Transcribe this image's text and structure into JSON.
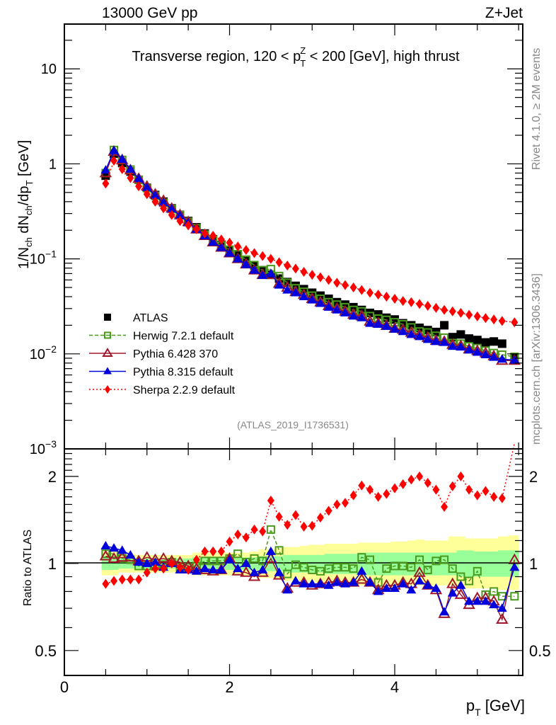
{
  "header": {
    "left": "13000 GeV pp",
    "right": "Z+Jet"
  },
  "side_labels": {
    "rivet": "Rivet 4.1.0, ≥ 2M events",
    "mcplots": "mcplots.cern.ch [arXiv:1306.3436]"
  },
  "chart_data": [
    {
      "type": "scatter",
      "panel": "main",
      "title": "Transverse region, 120 < p_T^Z < 200 [GeV], high thrust",
      "title_parts": {
        "pre": "Transverse region, 120 < p",
        "sup": "Z",
        "sub": "T",
        "post": " < 200 [GeV], high thrust"
      },
      "ylabel": "1/N_ch dN_ch/dp_T [GeV]",
      "ylabel_parts": {
        "a": "1/N",
        "a_sub": "ch",
        "b": " dN",
        "b_sub": "ch",
        "c": "/dp",
        "c_sub": "T",
        "d": " [GeV]"
      },
      "xlabel": "",
      "yscale": "log",
      "xlim": [
        0,
        5.55
      ],
      "ylim": [
        0.001,
        29.6
      ],
      "x_ticks": [
        0,
        2,
        4
      ],
      "y_ticks": [
        {
          "value": 10,
          "label": "10",
          "exp": ""
        },
        {
          "value": 1,
          "label": "1",
          "exp": ""
        },
        {
          "value": 0.1,
          "label": "10",
          "exp": "−1"
        },
        {
          "value": 0.01,
          "label": "10",
          "exp": "−2"
        },
        {
          "value": 0.001,
          "label": "10",
          "exp": "−3"
        }
      ],
      "annotation": "(ATLAS_2019_I1736531)",
      "legend_position": "lower-left",
      "x": [
        0.5,
        0.6,
        0.7,
        0.8,
        0.9,
        1.0,
        1.1,
        1.2,
        1.3,
        1.4,
        1.5,
        1.6,
        1.7,
        1.8,
        1.9,
        2.0,
        2.1,
        2.2,
        2.3,
        2.4,
        2.5,
        2.6,
        2.7,
        2.8,
        2.9,
        3.0,
        3.1,
        3.2,
        3.3,
        3.4,
        3.5,
        3.6,
        3.7,
        3.8,
        3.9,
        4.0,
        4.1,
        4.2,
        4.3,
        4.4,
        4.5,
        4.6,
        4.7,
        4.8,
        4.9,
        5.0,
        5.1,
        5.2,
        5.3,
        5.45
      ],
      "series": [
        {
          "name": "ATLAS",
          "color": "#000000",
          "marker": "square-filled",
          "line": "none",
          "values": [
            0.75,
            1.28,
            1.02,
            0.83,
            0.68,
            0.56,
            0.47,
            0.4,
            0.34,
            0.29,
            0.25,
            0.215,
            0.185,
            0.16,
            0.14,
            0.122,
            0.108,
            0.095,
            0.085,
            0.076,
            0.068,
            0.062,
            0.057,
            0.052,
            0.048,
            0.044,
            0.041,
            0.038,
            0.035,
            0.033,
            0.031,
            0.029,
            0.027,
            0.026,
            0.024,
            0.023,
            0.021,
            0.02,
            0.0188,
            0.0178,
            0.017,
            0.02,
            0.015,
            0.016,
            0.0145,
            0.014,
            0.0132,
            0.0135,
            0.0128,
            0.009
          ]
        },
        {
          "name": "Herwig 7.2.1 default",
          "color": "#4a9a1c",
          "marker": "square-open",
          "line": "dashed",
          "values": [
            0.8,
            1.4,
            1.1,
            0.87,
            0.68,
            0.555,
            0.46,
            0.39,
            0.335,
            0.288,
            0.245,
            0.21,
            0.18,
            0.158,
            0.138,
            0.125,
            0.112,
            0.098,
            0.086,
            0.076,
            0.078,
            0.066,
            0.056,
            0.049,
            0.045,
            0.041,
            0.038,
            0.035,
            0.033,
            0.031,
            0.029,
            0.028,
            0.025,
            0.0235,
            0.0228,
            0.0215,
            0.0205,
            0.019,
            0.0172,
            0.0168,
            0.0155,
            0.0148,
            0.013,
            0.0128,
            0.012,
            0.0115,
            0.0108,
            0.0102,
            0.0098,
            0.0093
          ]
        },
        {
          "name": "Pythia 6.428 370",
          "color": "#a0182a",
          "marker": "triangle-open",
          "line": "solid",
          "values": [
            0.8,
            1.35,
            1.1,
            0.86,
            0.7,
            0.58,
            0.48,
            0.41,
            0.34,
            0.29,
            0.245,
            0.205,
            0.175,
            0.15,
            0.132,
            0.115,
            0.1,
            0.088,
            0.076,
            0.068,
            0.068,
            0.055,
            0.05,
            0.045,
            0.042,
            0.038,
            0.035,
            0.032,
            0.03,
            0.028,
            0.026,
            0.025,
            0.022,
            0.021,
            0.0198,
            0.0185,
            0.018,
            0.0168,
            0.0158,
            0.0148,
            0.0138,
            0.0135,
            0.0125,
            0.0122,
            0.0112,
            0.0108,
            0.0102,
            0.0095,
            0.0085,
            0.0085
          ]
        },
        {
          "name": "Pythia 8.315 default",
          "color": "#0000dd",
          "marker": "triangle-filled",
          "line": "solid",
          "values": [
            0.86,
            1.38,
            1.12,
            0.88,
            0.7,
            0.565,
            0.465,
            0.39,
            0.335,
            0.285,
            0.24,
            0.205,
            0.175,
            0.15,
            0.132,
            0.115,
            0.1,
            0.087,
            0.076,
            0.067,
            0.07,
            0.053,
            0.047,
            0.044,
            0.04,
            0.037,
            0.034,
            0.031,
            0.029,
            0.027,
            0.025,
            0.024,
            0.021,
            0.0205,
            0.0195,
            0.0182,
            0.0172,
            0.016,
            0.0152,
            0.0142,
            0.0135,
            0.0132,
            0.012,
            0.0118,
            0.011,
            0.0104,
            0.0098,
            0.0092,
            0.0088,
            0.0086
          ]
        },
        {
          "name": "Sherpa 2.2.9 default",
          "color": "#ff0000",
          "marker": "diamond-filled",
          "line": "dotted",
          "values": [
            0.62,
            1.08,
            0.88,
            0.71,
            0.58,
            0.48,
            0.4,
            0.34,
            0.29,
            0.25,
            0.225,
            0.205,
            0.185,
            0.175,
            0.16,
            0.148,
            0.135,
            0.124,
            0.115,
            0.107,
            0.1,
            0.092,
            0.085,
            0.079,
            0.073,
            0.068,
            0.064,
            0.06,
            0.056,
            0.053,
            0.05,
            0.047,
            0.044,
            0.042,
            0.04,
            0.038,
            0.036,
            0.035,
            0.0335,
            0.032,
            0.0305,
            0.029,
            0.028,
            0.027,
            0.0258,
            0.0248,
            0.0238,
            0.023,
            0.0222,
            0.0215
          ]
        }
      ]
    },
    {
      "type": "scatter",
      "panel": "ratio",
      "ylabel": "Ratio to ATLAS",
      "xlabel": "p_T [GeV]",
      "xlabel_parts": {
        "a": "p",
        "a_sub": "T",
        "b": " [GeV]"
      },
      "yscale": "log",
      "xlim": [
        0,
        5.55
      ],
      "ylim": [
        0.41,
        2.49
      ],
      "x_ticks": [
        {
          "value": 0,
          "label": "0"
        },
        {
          "value": 2,
          "label": "2"
        },
        {
          "value": 4,
          "label": "4"
        }
      ],
      "y_ticks": [
        {
          "value": 2,
          "label": "2"
        },
        {
          "value": 1,
          "label": "1"
        },
        {
          "value": 0.5,
          "label": "0.5"
        }
      ],
      "reference_line": 1,
      "bands": {
        "inner_color": "#99ff99",
        "outer_color": "#ffff99",
        "inner": [
          [
            0.95,
            1.06
          ],
          [
            0.95,
            1.06
          ],
          [
            0.96,
            1.05
          ],
          [
            0.96,
            1.05
          ],
          [
            0.96,
            1.04
          ],
          [
            0.96,
            1.04
          ],
          [
            0.96,
            1.04
          ],
          [
            0.96,
            1.04
          ],
          [
            0.96,
            1.04
          ],
          [
            0.96,
            1.04
          ],
          [
            0.96,
            1.04
          ],
          [
            0.95,
            1.05
          ],
          [
            0.95,
            1.05
          ],
          [
            0.95,
            1.05
          ],
          [
            0.95,
            1.05
          ],
          [
            0.95,
            1.05
          ],
          [
            0.95,
            1.05
          ],
          [
            0.95,
            1.05
          ],
          [
            0.95,
            1.05
          ],
          [
            0.94,
            1.06
          ],
          [
            0.94,
            1.06
          ],
          [
            0.94,
            1.06
          ],
          [
            0.93,
            1.07
          ],
          [
            0.93,
            1.07
          ],
          [
            0.93,
            1.07
          ],
          [
            0.93,
            1.07
          ],
          [
            0.93,
            1.07
          ],
          [
            0.92,
            1.08
          ],
          [
            0.92,
            1.08
          ],
          [
            0.92,
            1.08
          ],
          [
            0.92,
            1.08
          ],
          [
            0.91,
            1.09
          ],
          [
            0.91,
            1.09
          ],
          [
            0.91,
            1.09
          ],
          [
            0.91,
            1.09
          ],
          [
            0.91,
            1.09
          ],
          [
            0.91,
            1.09
          ],
          [
            0.91,
            1.09
          ],
          [
            0.91,
            1.09
          ],
          [
            0.91,
            1.09
          ],
          [
            0.91,
            1.09
          ],
          [
            0.91,
            1.09
          ],
          [
            0.91,
            1.09
          ],
          [
            0.9,
            1.11
          ],
          [
            0.9,
            1.11
          ],
          [
            0.9,
            1.1
          ],
          [
            0.9,
            1.1
          ],
          [
            0.9,
            1.1
          ],
          [
            0.9,
            1.11
          ],
          [
            0.9,
            1.11
          ]
        ],
        "outer": [
          [
            0.91,
            1.1
          ],
          [
            0.91,
            1.1
          ],
          [
            0.93,
            1.08
          ],
          [
            0.93,
            1.08
          ],
          [
            0.93,
            1.07
          ],
          [
            0.93,
            1.07
          ],
          [
            0.93,
            1.07
          ],
          [
            0.93,
            1.07
          ],
          [
            0.93,
            1.07
          ],
          [
            0.93,
            1.07
          ],
          [
            0.93,
            1.07
          ],
          [
            0.91,
            1.09
          ],
          [
            0.91,
            1.09
          ],
          [
            0.91,
            1.09
          ],
          [
            0.91,
            1.09
          ],
          [
            0.91,
            1.09
          ],
          [
            0.91,
            1.09
          ],
          [
            0.91,
            1.09
          ],
          [
            0.9,
            1.1
          ],
          [
            0.89,
            1.12
          ],
          [
            0.89,
            1.12
          ],
          [
            0.88,
            1.13
          ],
          [
            0.87,
            1.14
          ],
          [
            0.87,
            1.14
          ],
          [
            0.87,
            1.15
          ],
          [
            0.86,
            1.16
          ],
          [
            0.86,
            1.16
          ],
          [
            0.85,
            1.17
          ],
          [
            0.85,
            1.17
          ],
          [
            0.85,
            1.17
          ],
          [
            0.85,
            1.17
          ],
          [
            0.84,
            1.18
          ],
          [
            0.84,
            1.18
          ],
          [
            0.84,
            1.18
          ],
          [
            0.84,
            1.18
          ],
          [
            0.84,
            1.19
          ],
          [
            0.84,
            1.19
          ],
          [
            0.84,
            1.2
          ],
          [
            0.84,
            1.21
          ],
          [
            0.84,
            1.2
          ],
          [
            0.84,
            1.2
          ],
          [
            0.84,
            1.2
          ],
          [
            0.84,
            1.24
          ],
          [
            0.82,
            1.24
          ],
          [
            0.82,
            1.22
          ],
          [
            0.82,
            1.22
          ],
          [
            0.82,
            1.22
          ],
          [
            0.82,
            1.22
          ],
          [
            0.81,
            1.24
          ],
          [
            0.81,
            1.25
          ]
        ]
      },
      "x": [
        0.5,
        0.6,
        0.7,
        0.8,
        0.9,
        1.0,
        1.1,
        1.2,
        1.3,
        1.4,
        1.5,
        1.6,
        1.7,
        1.8,
        1.9,
        2.0,
        2.1,
        2.2,
        2.3,
        2.4,
        2.5,
        2.6,
        2.7,
        2.8,
        2.9,
        3.0,
        3.1,
        3.2,
        3.3,
        3.4,
        3.5,
        3.6,
        3.7,
        3.8,
        3.9,
        4.0,
        4.1,
        4.2,
        4.3,
        4.4,
        4.5,
        4.6,
        4.7,
        4.8,
        4.9,
        5.0,
        5.1,
        5.2,
        5.3,
        5.45
      ],
      "series": [
        {
          "name": "Herwig 7.2.1 default",
          "color": "#4a9a1c",
          "marker": "square-open",
          "line": "dashed",
          "values": [
            1.08,
            1.08,
            1.04,
            1.03,
            0.98,
            0.98,
            0.98,
            0.99,
            1.01,
            0.97,
            0.97,
            0.98,
            1.02,
            1.02,
            1.02,
            1.04,
            1.08,
            1.01,
            1.04,
            1.02,
            1.31,
            1.11,
            0.92,
            0.99,
            0.97,
            0.95,
            0.94,
            0.96,
            0.97,
            0.97,
            0.96,
            1.05,
            1.03,
            0.86,
            0.96,
            0.98,
            0.98,
            0.97,
            1.03,
            0.95,
            1.02,
            1.03,
            0.96,
            0.9,
            0.87,
            0.94,
            0.78,
            0.8,
            0.77,
            0.77
          ]
        },
        {
          "name": "Pythia 6.428 370",
          "color": "#a0182a",
          "marker": "triangle-open",
          "line": "solid",
          "values": [
            1.06,
            1.04,
            1.05,
            1.05,
            1.02,
            1.05,
            1.03,
            1.04,
            1.02,
            1.01,
            0.98,
            0.96,
            0.95,
            0.94,
            0.95,
            1.04,
            0.94,
            0.93,
            0.9,
            0.93,
            1.04,
            0.91,
            0.82,
            0.86,
            0.86,
            0.84,
            0.85,
            0.86,
            0.87,
            0.86,
            0.86,
            0.88,
            0.86,
            0.81,
            0.84,
            0.84,
            0.86,
            0.85,
            0.93,
            0.84,
            0.81,
            0.67,
            0.85,
            0.78,
            0.72,
            0.76,
            0.76,
            0.74,
            0.64,
            1.03
          ]
        },
        {
          "name": "Pythia 8.315 default",
          "color": "#0000dd",
          "marker": "triangle-filled",
          "line": "solid",
          "values": [
            1.15,
            1.13,
            1.11,
            1.07,
            1.01,
            1.0,
            1.01,
            0.97,
            1.0,
            0.95,
            0.95,
            0.94,
            0.96,
            0.95,
            0.95,
            1.03,
            0.96,
            1.0,
            0.93,
            0.95,
            1.1,
            0.93,
            0.81,
            0.87,
            0.85,
            0.85,
            0.85,
            0.84,
            0.86,
            0.85,
            0.86,
            0.94,
            0.86,
            0.8,
            0.82,
            0.82,
            0.85,
            0.81,
            0.87,
            0.84,
            0.82,
            0.68,
            0.79,
            0.84,
            0.74,
            0.74,
            0.74,
            0.72,
            0.7,
            0.97
          ]
        },
        {
          "name": "Sherpa 2.2.9 default",
          "color": "#ff0000",
          "marker": "diamond-filled",
          "line": "dotted",
          "values": [
            0.85,
            0.87,
            0.88,
            0.88,
            0.88,
            0.93,
            0.96,
            0.96,
            1.0,
            0.97,
            0.95,
            1.03,
            1.1,
            1.1,
            1.1,
            1.19,
            1.26,
            1.23,
            1.31,
            1.29,
            1.65,
            1.45,
            1.36,
            1.47,
            1.34,
            1.35,
            1.44,
            1.52,
            1.6,
            1.62,
            1.72,
            1.86,
            1.8,
            1.7,
            1.74,
            1.82,
            1.88,
            1.95,
            2.0,
            1.9,
            1.8,
            1.57,
            1.85,
            2.0,
            1.8,
            1.72,
            1.78,
            1.7,
            1.68,
            2.6
          ]
        }
      ]
    }
  ]
}
